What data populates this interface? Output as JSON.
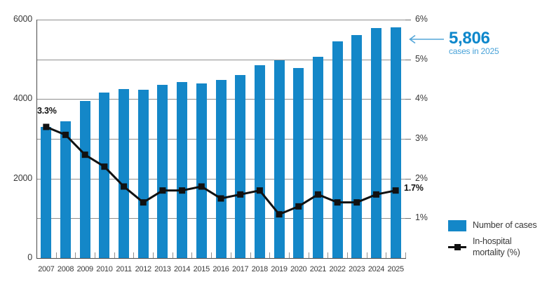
{
  "chart_data": {
    "type": "combo-bar-line",
    "title": "",
    "categories": [
      "2007",
      "2008",
      "2009",
      "2010",
      "2011",
      "2012",
      "2013",
      "2014",
      "2015",
      "2016",
      "2017",
      "2018",
      "2019",
      "2020",
      "2021",
      "2022",
      "2023",
      "2024",
      "2025"
    ],
    "series": [
      {
        "name": "Number of cases",
        "type": "bar",
        "axis": "left",
        "color": "#1487c8",
        "values": [
          3300,
          3450,
          3950,
          4170,
          4250,
          4240,
          4360,
          4430,
          4390,
          4490,
          4610,
          4860,
          4970,
          4780,
          5060,
          5460,
          5620,
          5790,
          5806
        ]
      },
      {
        "name": "In-hospital mortality (%)",
        "type": "line",
        "axis": "right",
        "color": "#111111",
        "values": [
          3.3,
          3.1,
          2.6,
          2.3,
          1.8,
          1.4,
          1.7,
          1.7,
          1.8,
          1.5,
          1.6,
          1.7,
          1.1,
          1.3,
          1.6,
          1.4,
          1.4,
          1.6,
          1.7
        ]
      }
    ],
    "left_axis": {
      "min": 0,
      "max": 6000,
      "grid_step": 1000,
      "tick_values": [
        0,
        2000,
        4000,
        6000
      ],
      "tick_labels": [
        "0",
        "2000",
        "4000",
        "6000"
      ]
    },
    "right_axis": {
      "min": 0,
      "max": 6,
      "tick_values": [
        1,
        2,
        3,
        4,
        5,
        6
      ],
      "tick_labels": [
        "1%",
        "2%",
        "3%",
        "4%",
        "5%",
        "6%"
      ]
    },
    "grid": true,
    "legend_position": "bottom-right",
    "annotations": {
      "first_point_label": "3.3%",
      "last_point_label": "1.7%",
      "callout_value": "5,806",
      "callout_caption": "cases in 2025"
    }
  },
  "legend": {
    "cases_label": "Number of cases",
    "mortality_label": "In-hospital mortality (%)"
  },
  "colors": {
    "bar": "#1487c8",
    "line": "#111111",
    "grid": "#8f8f8f",
    "axis": "#4a4a4a",
    "text": "#3a3a3a",
    "callout_value": "#0d87cb",
    "callout_caption": "#48a2d8",
    "arrow": "#54a6d9"
  }
}
